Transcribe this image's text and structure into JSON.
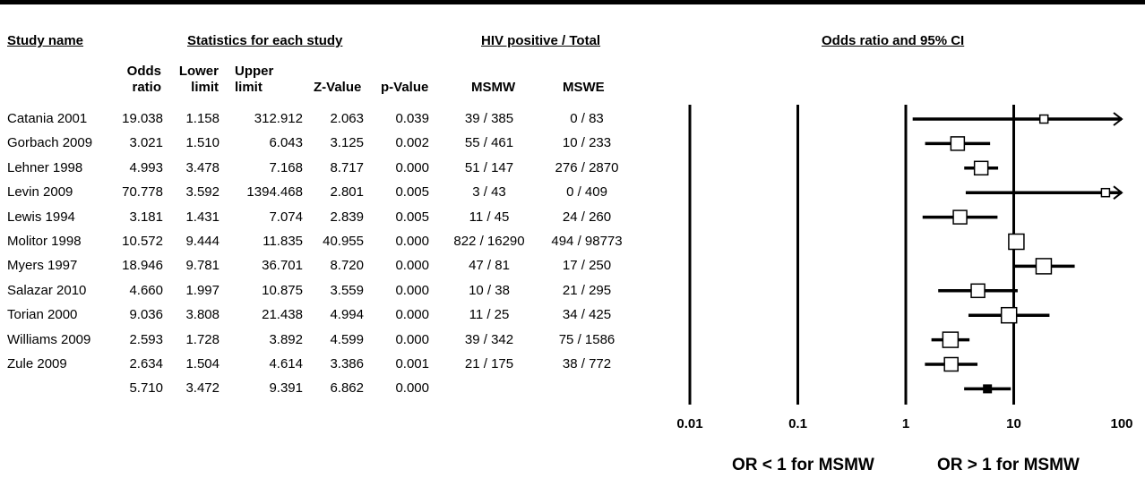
{
  "headers": {
    "study_name": "Study name",
    "statistics": "Statistics for each study",
    "hiv": "HIV positive / Total",
    "odds_ci": "Odds ratio and 95% CI"
  },
  "columns": {
    "odds_ratio": [
      "Odds",
      "ratio"
    ],
    "lower_limit": [
      "Lower",
      "limit"
    ],
    "upper_limit": [
      "Upper",
      "limit"
    ],
    "z_value": "Z-Value",
    "p_value": "p-Value",
    "msmw": "MSMW",
    "mswe": "MSWE"
  },
  "rows": [
    {
      "study": "Catania 2001",
      "or": "19.038",
      "lower": "1.158",
      "upper": "312.912",
      "z": "2.063",
      "p": "0.039",
      "msmw": "39 / 385",
      "mswe": "0 / 83"
    },
    {
      "study": "Gorbach 2009",
      "or": "3.021",
      "lower": "1.510",
      "upper": "6.043",
      "z": "3.125",
      "p": "0.002",
      "msmw": "55 / 461",
      "mswe": "10 / 233"
    },
    {
      "study": "Lehner 1998",
      "or": "4.993",
      "lower": "3.478",
      "upper": "7.168",
      "z": "8.717",
      "p": "0.000",
      "msmw": "51 / 147",
      "mswe": "276 / 2870"
    },
    {
      "study": "Levin 2009",
      "or": "70.778",
      "lower": "3.592",
      "upper": "1394.468",
      "z": "2.801",
      "p": "0.005",
      "msmw": "3 / 43",
      "mswe": "0 / 409"
    },
    {
      "study": "Lewis 1994",
      "or": "3.181",
      "lower": "1.431",
      "upper": "7.074",
      "z": "2.839",
      "p": "0.005",
      "msmw": "11 / 45",
      "mswe": "24 / 260"
    },
    {
      "study": "Molitor 1998",
      "or": "10.572",
      "lower": "9.444",
      "upper": "11.835",
      "z": "40.955",
      "p": "0.000",
      "msmw": "822 / 16290",
      "mswe": "494 / 98773"
    },
    {
      "study": "Myers 1997",
      "or": "18.946",
      "lower": "9.781",
      "upper": "36.701",
      "z": "8.720",
      "p": "0.000",
      "msmw": "47 / 81",
      "mswe": "17 / 250"
    },
    {
      "study": "Salazar 2010",
      "or": "4.660",
      "lower": "1.997",
      "upper": "10.875",
      "z": "3.559",
      "p": "0.000",
      "msmw": "10 / 38",
      "mswe": "21 / 295"
    },
    {
      "study": "Torian 2000",
      "or": "9.036",
      "lower": "3.808",
      "upper": "21.438",
      "z": "4.994",
      "p": "0.000",
      "msmw": "11 / 25",
      "mswe": "34 / 425"
    },
    {
      "study": "Williams 2009",
      "or": "2.593",
      "lower": "1.728",
      "upper": "3.892",
      "z": "4.599",
      "p": "0.000",
      "msmw": "39 / 342",
      "mswe": "75 / 1586"
    },
    {
      "study": "Zule 2009",
      "or": "2.634",
      "lower": "1.504",
      "upper": "4.614",
      "z": "3.386",
      "p": "0.001",
      "msmw": "21 / 175",
      "mswe": "38 / 772"
    }
  ],
  "summary": {
    "or": "5.710",
    "lower": "3.472",
    "upper": "9.391",
    "z": "6.862",
    "p": "0.000"
  },
  "footer": {
    "left": "OR < 1 for MSMW",
    "right": "OR > 1 for MSMW"
  },
  "chart_data": {
    "type": "forest",
    "x_scale": "log",
    "xlim": [
      0.01,
      100
    ],
    "x_ticks": [
      "0.01",
      "0.1",
      "1",
      "10",
      "100"
    ],
    "x_tick_values": [
      0.01,
      0.1,
      1,
      10,
      100
    ],
    "series": [
      {
        "label": "Catania 2001",
        "or": 19.038,
        "lower": 1.158,
        "upper": 312.912,
        "weight": 1
      },
      {
        "label": "Gorbach 2009",
        "or": 3.021,
        "lower": 1.51,
        "upper": 6.043,
        "weight": 3
      },
      {
        "label": "Lehner 1998",
        "or": 4.993,
        "lower": 3.478,
        "upper": 7.168,
        "weight": 3
      },
      {
        "label": "Levin 2009",
        "or": 70.778,
        "lower": 3.592,
        "upper": 1394.468,
        "weight": 1
      },
      {
        "label": "Lewis 1994",
        "or": 3.181,
        "lower": 1.431,
        "upper": 7.074,
        "weight": 3
      },
      {
        "label": "Molitor 1998",
        "or": 10.572,
        "lower": 9.444,
        "upper": 11.835,
        "weight": 4
      },
      {
        "label": "Myers 1997",
        "or": 18.946,
        "lower": 9.781,
        "upper": 36.701,
        "weight": 4
      },
      {
        "label": "Salazar 2010",
        "or": 4.66,
        "lower": 1.997,
        "upper": 10.875,
        "weight": 3
      },
      {
        "label": "Torian 2000",
        "or": 9.036,
        "lower": 3.808,
        "upper": 21.438,
        "weight": 4
      },
      {
        "label": "Williams 2009",
        "or": 2.593,
        "lower": 1.728,
        "upper": 3.892,
        "weight": 4
      },
      {
        "label": "Zule 2009",
        "or": 2.634,
        "lower": 1.504,
        "upper": 4.614,
        "weight": 3
      }
    ],
    "summary": {
      "or": 5.71,
      "lower": 3.472,
      "upper": 9.391
    }
  }
}
